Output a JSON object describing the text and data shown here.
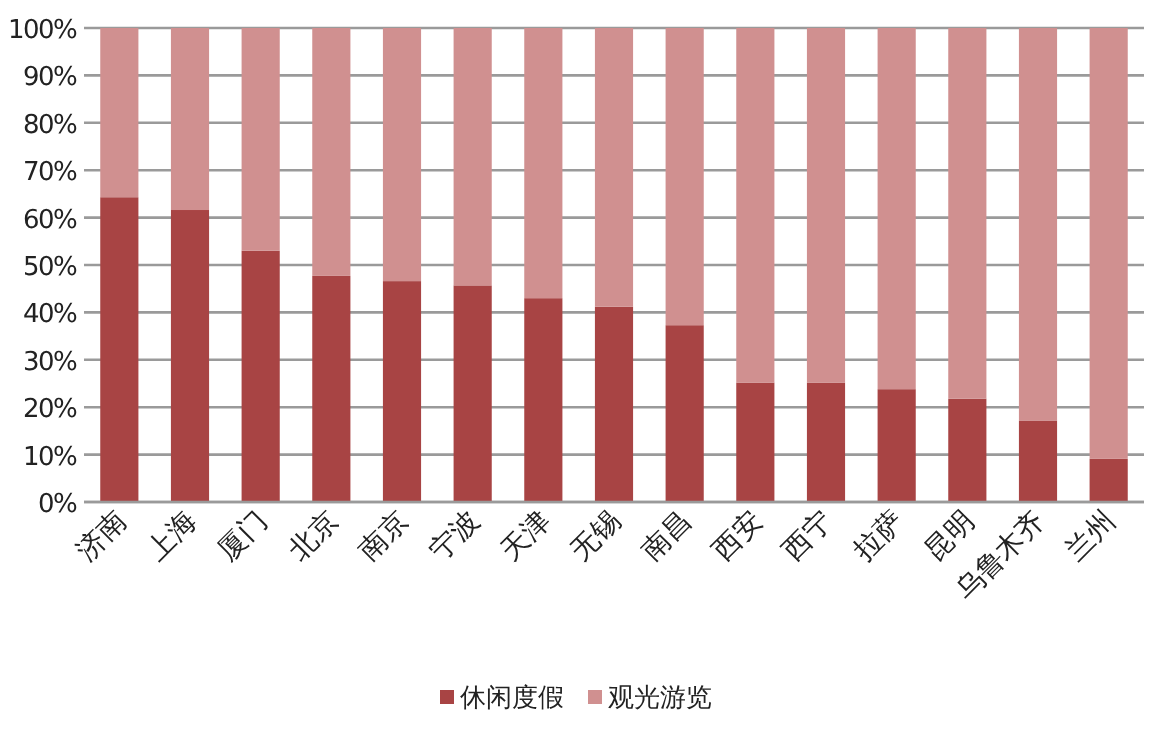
{
  "chart_data": {
    "type": "bar",
    "stacked": true,
    "categories": [
      "济南",
      "上海",
      "厦门",
      "北京",
      "南京",
      "宁波",
      "天津",
      "无锡",
      "南昌",
      "西安",
      "西宁",
      "拉萨",
      "昆明",
      "乌鲁木齐",
      "兰州"
    ],
    "series": [
      {
        "name": "休闲度假",
        "color": "#a84444",
        "values": [
          64.3,
          61.6,
          53,
          47.7,
          46.6,
          45.7,
          43,
          41.2,
          37.3,
          25.2,
          25.2,
          23.8,
          21.8,
          17.2,
          9.1
        ]
      },
      {
        "name": "观光游览",
        "color": "#d09090",
        "values": [
          35.7,
          38.4,
          47,
          52.3,
          53.4,
          54.3,
          57,
          58.8,
          62.7,
          74.8,
          74.8,
          76.2,
          78.2,
          82.8,
          90.9
        ]
      }
    ],
    "ylim": [
      0,
      100
    ],
    "yticks": [
      {
        "value": 0,
        "label": "0%"
      },
      {
        "value": 10,
        "label": "10%"
      },
      {
        "value": 20,
        "label": "20%"
      },
      {
        "value": 30,
        "label": "30%"
      },
      {
        "value": 40,
        "label": "40%"
      },
      {
        "value": 50,
        "label": "50%"
      },
      {
        "value": 60,
        "label": "60%"
      },
      {
        "value": 70,
        "label": "70%"
      },
      {
        "value": 80,
        "label": "80%"
      },
      {
        "value": 90,
        "label": "90%"
      },
      {
        "value": 100,
        "label": "100%"
      }
    ],
    "grid": "y",
    "legend": "bottom"
  }
}
